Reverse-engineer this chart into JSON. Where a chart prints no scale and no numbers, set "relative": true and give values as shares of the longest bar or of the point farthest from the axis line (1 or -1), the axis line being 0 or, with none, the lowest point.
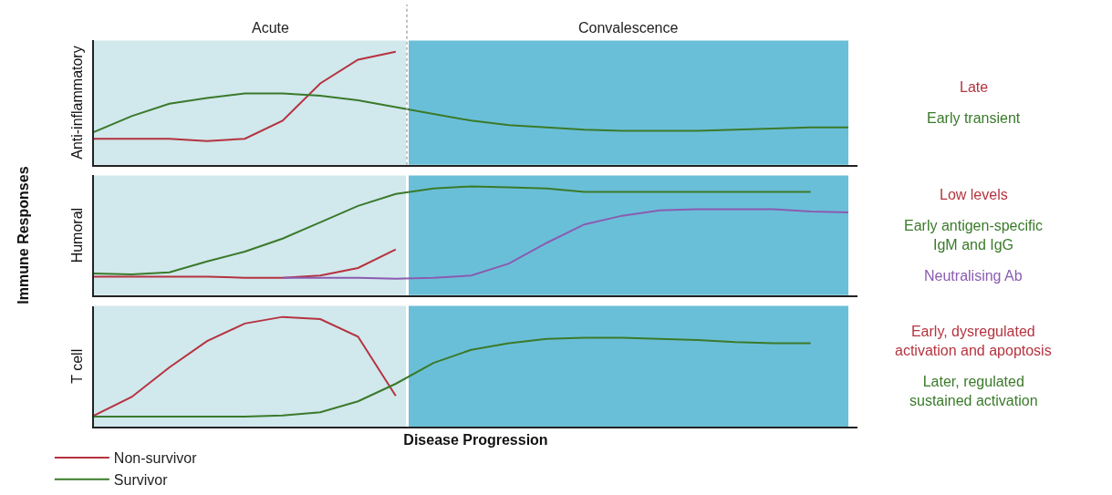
{
  "chart_data": [
    {
      "type": "line",
      "relative": true,
      "ylabel": "Anti-inflammatory",
      "categories": [
        null,
        null,
        null,
        null,
        null,
        null,
        null,
        null,
        null,
        null,
        null,
        null,
        null,
        null,
        null,
        null,
        null,
        null,
        null,
        null,
        null
      ],
      "series": [
        {
          "name": "Non-survivor",
          "color": "#b5333f",
          "values": [
            0.23,
            0.23,
            0.23,
            0.21,
            0.23,
            0.39,
            0.72,
            0.93,
            1,
            null,
            null,
            null,
            null,
            null,
            null,
            null,
            null,
            null,
            null,
            null,
            null
          ]
        },
        {
          "name": "Survivor",
          "color": "#3a7a2a",
          "values": [
            0.29,
            0.43,
            0.54,
            0.59,
            0.63,
            0.63,
            0.61,
            0.57,
            0.51,
            0.45,
            0.39,
            0.35,
            0.33,
            0.31,
            0.3,
            0.3,
            0.3,
            0.31,
            0.32,
            0.33,
            0.33
          ]
        }
      ],
      "annotations": [
        "Late",
        "Early transient",
        "Acute",
        "Convalescence"
      ],
      "marker": "none",
      "line_style": "solid",
      "grid": false,
      "tick_labels": false,
      "legend": "bottom left"
    },
    {
      "type": "line",
      "relative": true,
      "title": "Immune Responses",
      "ylabel": "Humoral",
      "categories": [
        null,
        null,
        null,
        null,
        null,
        null,
        null,
        null,
        null,
        null,
        null,
        null,
        null,
        null,
        null,
        null,
        null,
        null,
        null,
        null,
        null
      ],
      "series": [
        {
          "color": "#b5333f",
          "values": [
            0.17,
            0.17,
            0.17,
            0.17,
            0.16,
            0.16,
            0.18,
            0.25,
            0.42,
            null,
            null,
            null,
            null,
            null,
            null,
            null,
            null,
            null,
            null,
            null,
            null
          ]
        },
        {
          "color": "#3a7a2a",
          "values": [
            0.2,
            0.19,
            0.21,
            0.31,
            0.4,
            0.52,
            0.67,
            0.82,
            0.93,
            0.98,
            1,
            0.99,
            0.98,
            0.95,
            0.95,
            0.95,
            0.95,
            0.95,
            0.95,
            0.95,
            null
          ]
        },
        {
          "name": "Neutralising Ab",
          "color": "#8a5cb0",
          "values": [
            null,
            null,
            null,
            null,
            null,
            0.16,
            0.16,
            0.16,
            0.15,
            0.16,
            0.18,
            0.29,
            0.48,
            0.65,
            0.73,
            0.78,
            0.79,
            0.79,
            0.79,
            0.77,
            0.76
          ]
        }
      ],
      "annotations": [
        "Low levels",
        "Early antigen-specific\nIgM and IgG"
      ],
      "marker": "none",
      "line_style": "solid",
      "grid": false,
      "tick_labels": false,
      "legend": false
    },
    {
      "type": "line",
      "relative": true,
      "ylabel": "T cell",
      "xlabel": "Disease Progression",
      "categories": [
        null,
        null,
        null,
        null,
        null,
        null,
        null,
        null,
        null,
        null,
        null,
        null,
        null,
        null,
        null,
        null,
        null,
        null,
        null,
        null,
        null
      ],
      "series": [
        {
          "color": "#b5333f",
          "values": [
            0.1,
            0.27,
            0.54,
            0.78,
            0.94,
            1,
            0.98,
            0.82,
            0.28,
            null,
            null,
            null,
            null,
            null,
            null,
            null,
            null,
            null,
            null,
            null,
            null
          ]
        },
        {
          "color": "#3a7a2a",
          "values": [
            0.09,
            0.09,
            0.09,
            0.09,
            0.09,
            0.1,
            0.13,
            0.23,
            0.39,
            0.58,
            0.7,
            0.76,
            0.8,
            0.81,
            0.81,
            0.8,
            0.79,
            0.77,
            0.76,
            0.76,
            null
          ]
        }
      ],
      "annotations": [
        "Early, dysregulated\nactivation and apoptosis",
        "Later, regulated\nsustained activation"
      ],
      "marker": "none",
      "line_style": "solid",
      "grid": false,
      "tick_labels": false,
      "legend": false
    }
  ]
}
